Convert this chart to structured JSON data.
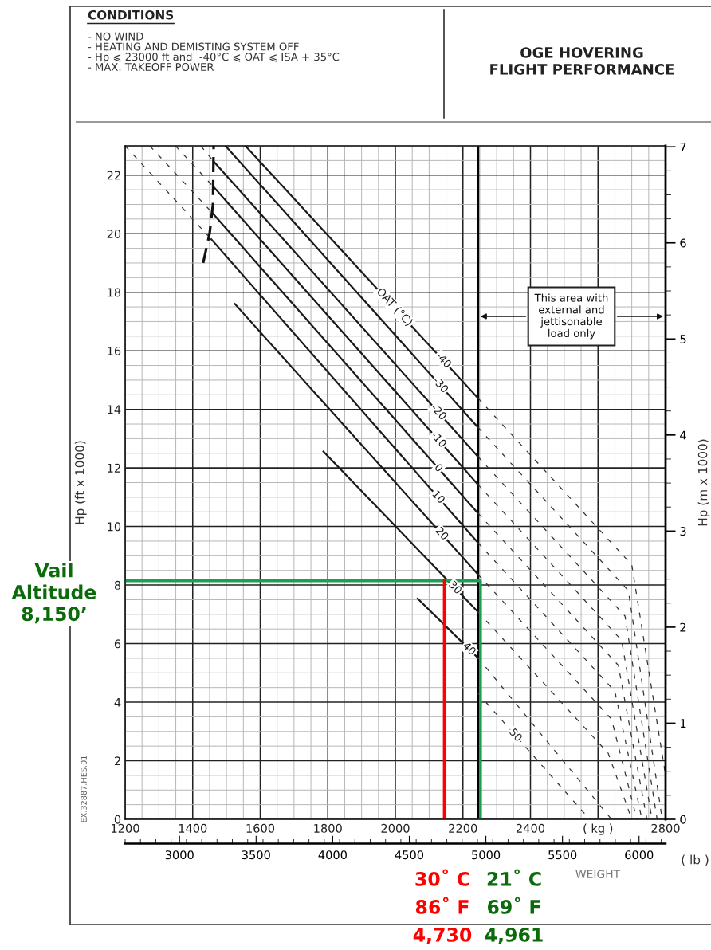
{
  "chart_data": {
    "type": "line",
    "title": "OGE HOVERING\nFLIGHT PERFORMANCE",
    "xlabel": "WEIGHT",
    "ylabel": "Hp (ft x 1000)",
    "y2label": "Hp (m x 1000)",
    "x2label": "( lb )",
    "xlim": [
      1200,
      2800
    ],
    "xticks": [
      1200,
      1400,
      1600,
      1800,
      2000,
      2200,
      2400,
      {
        "value": 2600,
        "label": "( kg )"
      },
      2800
    ],
    "ylim": [
      0,
      23
    ],
    "yticks": [
      0,
      2,
      4,
      6,
      8,
      10,
      12,
      14,
      16,
      18,
      20,
      22
    ],
    "y2lim": [
      0,
      7.01
    ],
    "y2ticks": [
      0,
      1,
      2,
      3,
      4,
      5,
      6,
      7
    ],
    "x2lim": [
      2645,
      6173
    ],
    "x2ticks": [
      3000,
      3500,
      4000,
      4500,
      5000,
      5500,
      6000
    ],
    "grid": true,
    "legend": false,
    "marker": "none",
    "series": [
      {
        "name": "-40",
        "color": "#1a1a1a",
        "line_style": "solid",
        "x": [
          1556,
          2245
        ],
        "values": [
          23,
          14.38
        ]
      },
      {
        "name": "-30",
        "color": "#1a1a1a",
        "line_style": "solid",
        "x": [
          1497,
          2245
        ],
        "values": [
          23,
          13.38
        ]
      },
      {
        "name": "-20",
        "color": "#1a1a1a",
        "line_style": "solid",
        "x": [
          1462,
          2245
        ],
        "values": [
          22.47,
          12.38
        ]
      },
      {
        "name": "-10",
        "color": "#1a1a1a",
        "line_style": "solid",
        "x": [
          1461,
          2245
        ],
        "values": [
          21.61,
          11.43
        ]
      },
      {
        "name": "0",
        "color": "#1a1a1a",
        "line_style": "solid",
        "x": [
          1459,
          2245
        ],
        "values": [
          20.7,
          10.45
        ]
      },
      {
        "name": "10",
        "color": "#1a1a1a",
        "line_style": "solid",
        "x": [
          1455,
          2245
        ],
        "values": [
          19.81,
          9.44
        ]
      },
      {
        "name": "20",
        "color": "#1a1a1a",
        "line_style": "solid",
        "x": [
          1525,
          2245
        ],
        "values": [
          17.6,
          8.36
        ]
      },
      {
        "name": "30",
        "color": "#1a1a1a",
        "line_style": "solid",
        "x": [
          1787,
          2245
        ],
        "values": [
          12.56,
          7.08
        ]
      },
      {
        "name": "40",
        "color": "#1a1a1a",
        "line_style": "solid",
        "x": [
          2066,
          2245
        ],
        "values": [
          7.54,
          5.51
        ]
      },
      {
        "name": "50",
        "color": "#333333",
        "line_style": "dashed",
        "x": [
          2245,
          2560
        ],
        "values": [
          4.3,
          0.2
        ]
      },
      {
        "color": "#333333",
        "line_style": "dashed",
        "x": [
          2245,
          2700,
          2800
        ],
        "values": [
          14.38,
          8.69,
          1.5
        ]
      },
      {
        "color": "#333333",
        "line_style": "dashed",
        "x": [
          2245,
          2690,
          2790
        ],
        "values": [
          13.38,
          7.81,
          0
        ]
      },
      {
        "color": "#333333",
        "line_style": "dashed",
        "x": [
          2245,
          2680,
          2775
        ],
        "values": [
          12.38,
          6.94,
          0
        ]
      },
      {
        "color": "#333333",
        "line_style": "dashed",
        "x": [
          2245,
          2670,
          2760
        ],
        "values": [
          11.43,
          6.11,
          0
        ]
      },
      {
        "color": "#333333",
        "line_style": "dashed",
        "x": [
          2245,
          2660,
          2745
        ],
        "values": [
          10.45,
          5.26,
          0
        ]
      },
      {
        "color": "#333333",
        "line_style": "dashed",
        "x": [
          2245,
          2650,
          2730
        ],
        "values": [
          9.44,
          4.37,
          0
        ]
      },
      {
        "color": "#333333",
        "line_style": "dashed",
        "x": [
          2245,
          2640,
          2715
        ],
        "values": [
          8.36,
          3.42,
          0
        ]
      },
      {
        "color": "#333333",
        "line_style": "dashed",
        "x": [
          2245,
          2630,
          2700
        ],
        "values": [
          7.08,
          2.26,
          0
        ]
      },
      {
        "color": "#333333",
        "line_style": "dashed",
        "x": [
          2245,
          2640
        ],
        "values": [
          5.51,
          0
        ]
      },
      {
        "color": "#333333",
        "line_style": "dashed",
        "x": [
          1424,
          1462
        ],
        "values": [
          23,
          22.47
        ]
      },
      {
        "color": "#333333",
        "line_style": "dashed",
        "x": [
          1349,
          1461
        ],
        "values": [
          23,
          21.61
        ]
      },
      {
        "color": "#333333",
        "line_style": "dashed",
        "x": [
          1273,
          1459
        ],
        "values": [
          23,
          20.7
        ]
      },
      {
        "color": "#333333",
        "line_style": "dashed",
        "x": [
          1200,
          1455
        ],
        "values": [
          23,
          19.81
        ]
      },
      {
        "color": "#111111",
        "line_style": "dashed",
        "x": [
          1431,
          1450,
          1460,
          1462
        ],
        "values": [
          19.0,
          20.0,
          21.0,
          23
        ]
      },
      {
        "color": "#1aa050",
        "line_style": "solid",
        "x": [
          1200,
          2252,
          2252
        ],
        "values": [
          8.15,
          8.15,
          0
        ]
      },
      {
        "color": "#ff0000",
        "line_style": "solid",
        "x": [
          2145,
          2145
        ],
        "values": [
          8.15,
          0
        ]
      }
    ],
    "ref_lines": [
      {
        "axis": "x",
        "value": 2245,
        "color": "#000000"
      }
    ],
    "annotations": [
      "CONDITIONS",
      "- NO WIND\n- HEATING AND DEMISTING SYSTEM OFF\n- Hp ⩽ 23000 ft and  -40°C ⩽ OAT ⩽ ISA + 35°C\n- MAX. TAKEOFF POWER",
      "EX.32887.HES.01",
      "OAT (°C)",
      "This area with\nexternal and\njettisonable\nload only",
      "Vail\nAltitude\n8,150’",
      "30˚ C",
      "86˚ F",
      "4,730",
      "21˚ C",
      "69˚ F",
      "4,961"
    ]
  }
}
